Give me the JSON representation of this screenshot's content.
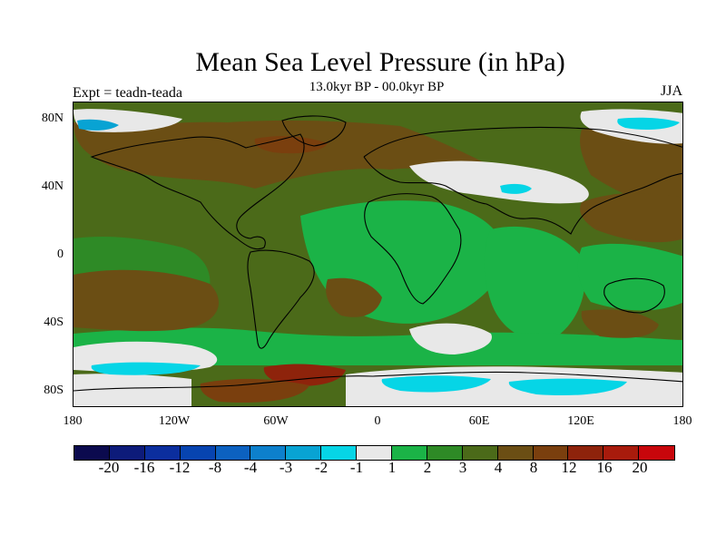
{
  "title": "Mean Sea Level Pressure (in hPa)",
  "subtitle": "13.0kyr BP - 00.0kyr BP",
  "experiment_label": "Expt = teadn-teada",
  "season_label": "JJA",
  "colors": {
    "c1": "#0b0a4e",
    "c2": "#0d1b7a",
    "c3": "#0b2e9e",
    "c4": "#0744b0",
    "c5": "#0c61c0",
    "c6": "#0d80cc",
    "c7": "#08a3d3",
    "c8": "#06d5e6",
    "white": "#e8e8e8",
    "g1": "#1bb347",
    "g2": "#2e8a26",
    "g3": "#4b6a19",
    "b1": "#6b4e14",
    "b2": "#7a3f0e",
    "r1": "#8e230b",
    "r2": "#a81b0c",
    "r3": "#c8060b"
  },
  "chart_data": {
    "type": "heatmap",
    "title": "Mean Sea Level Pressure (in hPa)",
    "subtitle": "13.0kyr BP - 00.0kyr BP",
    "latitude_ticks": [
      "80N",
      "40N",
      "0",
      "40S",
      "80S"
    ],
    "longitude_ticks": [
      "180",
      "120W",
      "60W",
      "0",
      "60E",
      "120E",
      "180"
    ],
    "colorbar": {
      "levels": [
        "-20",
        "-16",
        "-12",
        "-8",
        "-4",
        "-3",
        "-2",
        "-1",
        "1",
        "2",
        "3",
        "4",
        "8",
        "12",
        "16",
        "20"
      ]
    },
    "units": "hPa",
    "season": "JJA"
  }
}
